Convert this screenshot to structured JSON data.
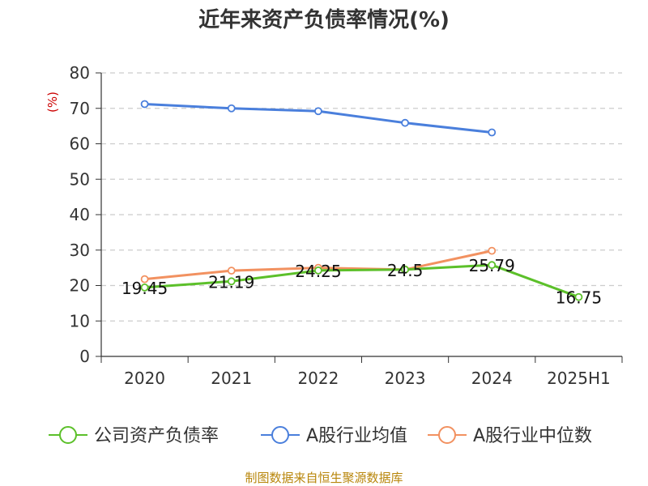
{
  "chart_data": {
    "type": "line",
    "title": "近年来资产负债率情况(%)",
    "ylabel": "(%)",
    "xlabel": "",
    "categories": [
      "2020",
      "2021",
      "2022",
      "2023",
      "2024",
      "2025H1"
    ],
    "ylim": [
      0,
      80
    ],
    "yticks": [
      "0",
      "10",
      "20",
      "30",
      "40",
      "50",
      "60",
      "70",
      "80"
    ],
    "grid": true,
    "legend_position": "bottom",
    "series": [
      {
        "name": "公司资产负债率",
        "color": "#5cc02a",
        "values": [
          19.45,
          21.19,
          24.25,
          24.5,
          25.79,
          16.75
        ],
        "labels": [
          "19.45",
          "21.19",
          "24.25",
          "24.5",
          "25.79",
          "16.75"
        ]
      },
      {
        "name": "A股行业均值",
        "color": "#4a7fdc",
        "values": [
          71.2,
          70.0,
          69.2,
          65.9,
          63.2,
          null
        ]
      },
      {
        "name": "A股行业中位数",
        "color": "#f29160",
        "values": [
          21.8,
          24.2,
          25.0,
          24.5,
          29.8,
          null
        ]
      }
    ],
    "source": "制图数据来自恒生聚源数据库"
  }
}
